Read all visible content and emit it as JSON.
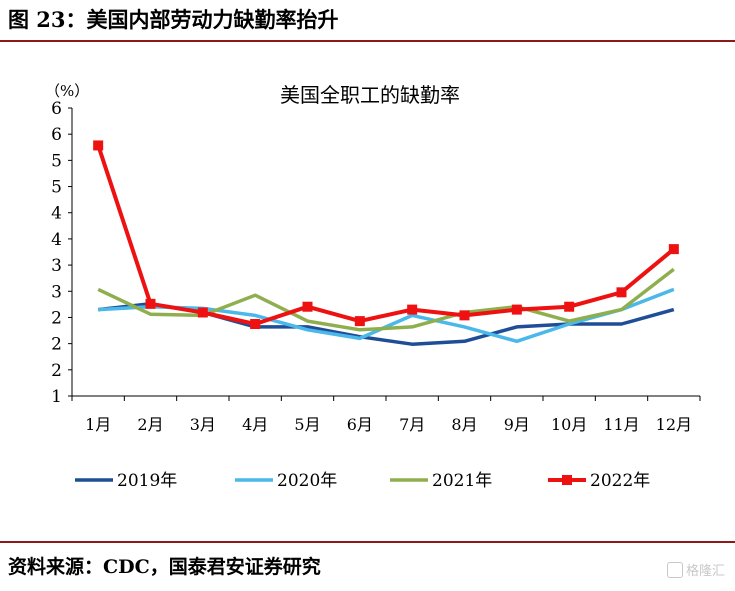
{
  "figure_title": "图 23：美国内部劳动力缺勤率抬升",
  "source": "资料来源：CDC，国泰君安证券研究",
  "watermark": "格隆汇",
  "colors": {
    "rule": "#8c1a1a",
    "s2019": "#1f4e96",
    "s2020": "#4ab8ea",
    "s2021": "#8faf4f",
    "s2022": "#ee1111"
  },
  "chart_data": {
    "type": "line",
    "title": "美国全职工的缺勤率",
    "unit_label": "（%）",
    "categories": [
      "1月",
      "2月",
      "3月",
      "4月",
      "5月",
      "6月",
      "7月",
      "8月",
      "9月",
      "10月",
      "11月",
      "12月"
    ],
    "yticks": [
      "6",
      "6",
      "5",
      "5",
      "4",
      "4",
      "3",
      "3",
      "2",
      "2",
      "2",
      "1"
    ],
    "ylim": [
      1,
      6
    ],
    "grid": false,
    "legend_position": "bottom",
    "series": [
      {
        "name": "2019年",
        "color": "#1f4e96",
        "marker": "none",
        "values": [
          2.5,
          2.6,
          2.45,
          2.2,
          2.2,
          2.03,
          1.9,
          1.95,
          2.2,
          2.25,
          2.25,
          2.5
        ]
      },
      {
        "name": "2020年",
        "color": "#4ab8ea",
        "marker": "none",
        "values": [
          2.5,
          2.55,
          2.52,
          2.4,
          2.15,
          2.0,
          2.4,
          2.2,
          1.95,
          2.25,
          2.5,
          2.85
        ]
      },
      {
        "name": "2021年",
        "color": "#8faf4f",
        "marker": "none",
        "values": [
          2.85,
          2.42,
          2.4,
          2.75,
          2.3,
          2.15,
          2.2,
          2.45,
          2.55,
          2.3,
          2.5,
          3.2
        ]
      },
      {
        "name": "2022年",
        "color": "#ee1111",
        "marker": "square",
        "values": [
          5.35,
          2.6,
          2.45,
          2.25,
          2.55,
          2.3,
          2.5,
          2.4,
          2.5,
          2.55,
          2.8,
          3.55
        ]
      }
    ]
  }
}
